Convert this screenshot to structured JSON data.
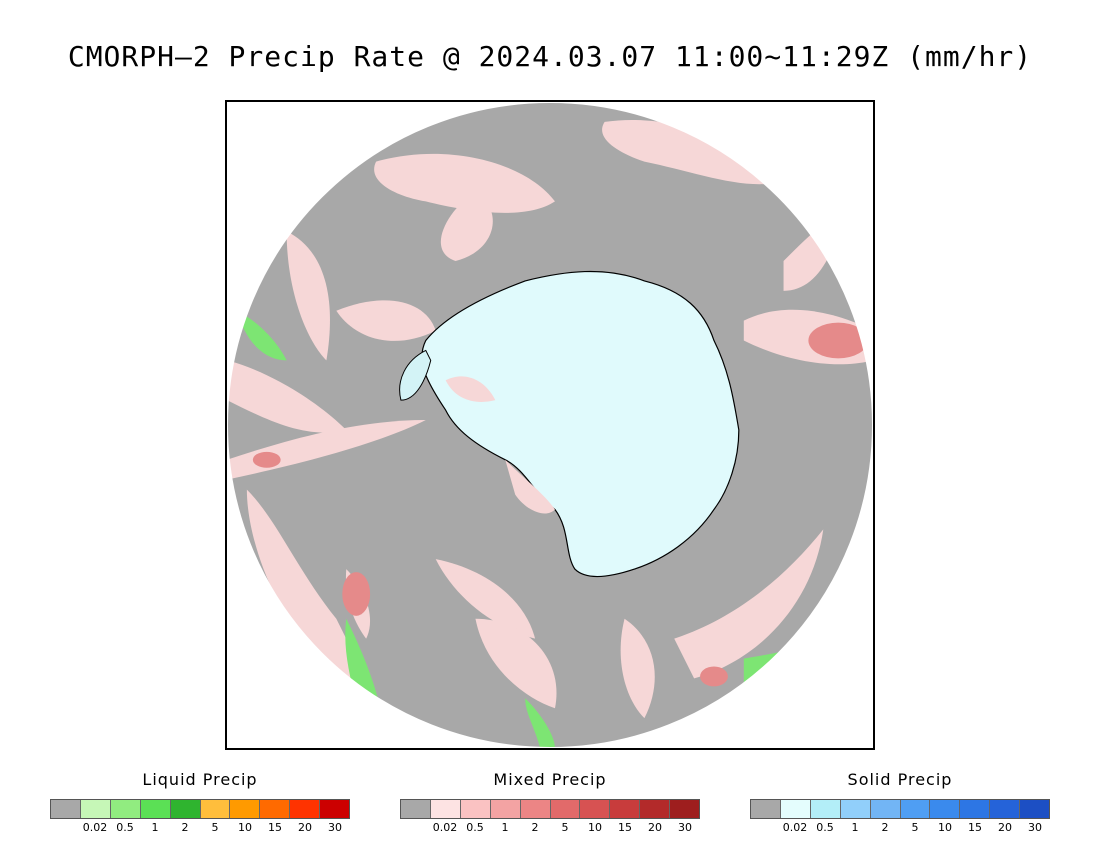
{
  "title": "CMORPH–2 Precip Rate @ 2024.03.07 11:00~11:29Z (mm/hr)",
  "colors": {
    "no_precip": "#a8a8a8",
    "ocean_light_precip": "#f6d7d7",
    "ice": "#e0fafc",
    "coast": "#000000"
  },
  "legends": [
    {
      "title": "Liquid Precip",
      "colors": [
        "#a8a8a8",
        "#c6f7b7",
        "#91ec80",
        "#5be055",
        "#2fb42f",
        "#ffbe3c",
        "#ff9a00",
        "#ff6a00",
        "#ff3300",
        "#cc0000"
      ],
      "ticks": [
        "0.02",
        "0.5",
        "1",
        "2",
        "5",
        "10",
        "15",
        "20",
        "30"
      ]
    },
    {
      "title": "Mixed Precip",
      "colors": [
        "#a8a8a8",
        "#fde3e3",
        "#fac2c2",
        "#f3a3a3",
        "#ec8585",
        "#e26a6a",
        "#d75252",
        "#c83c3c",
        "#b32a2a",
        "#9e1e1e"
      ],
      "ticks": [
        "0.02",
        "0.5",
        "1",
        "2",
        "5",
        "10",
        "15",
        "20",
        "30"
      ]
    },
    {
      "title": "Solid Precip",
      "colors": [
        "#a8a8a8",
        "#e4fdfd",
        "#b3eef8",
        "#91cffa",
        "#72b5f5",
        "#4f9ef3",
        "#3a8aed",
        "#2d76e4",
        "#2563d9",
        "#1c4fc4"
      ],
      "ticks": [
        "0.02",
        "0.5",
        "1",
        "2",
        "5",
        "10",
        "15",
        "20",
        "30"
      ]
    }
  ]
}
